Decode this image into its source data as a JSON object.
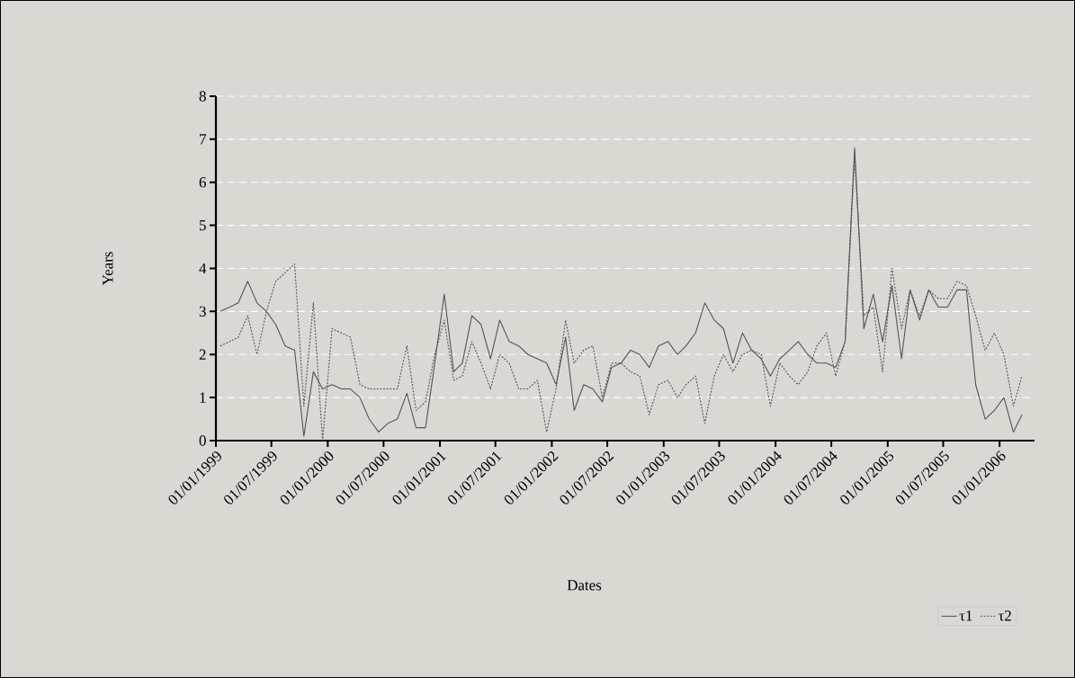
{
  "chart_data": {
    "type": "line",
    "xlabel": "Dates",
    "ylabel": "Years",
    "x": [
      "1999-01-15",
      "1999-02-15",
      "1999-03-15",
      "1999-04-15",
      "1999-05-15",
      "1999-06-15",
      "1999-07-15",
      "1999-08-15",
      "1999-09-15",
      "1999-10-15",
      "1999-11-15",
      "1999-12-15",
      "2000-01-15",
      "2000-02-15",
      "2000-03-15",
      "2000-04-15",
      "2000-05-15",
      "2000-06-15",
      "2000-07-15",
      "2000-08-15",
      "2000-09-15",
      "2000-10-15",
      "2000-11-15",
      "2000-12-15",
      "2001-01-15",
      "2001-02-15",
      "2001-03-15",
      "2001-04-15",
      "2001-05-15",
      "2001-06-15",
      "2001-07-15",
      "2001-08-15",
      "2001-09-15",
      "2001-10-15",
      "2001-11-15",
      "2001-12-15",
      "2002-01-15",
      "2002-02-15",
      "2002-03-15",
      "2002-04-15",
      "2002-05-15",
      "2002-06-15",
      "2002-07-15",
      "2002-08-15",
      "2002-09-15",
      "2002-10-15",
      "2002-11-15",
      "2002-12-15",
      "2003-01-15",
      "2003-02-15",
      "2003-03-15",
      "2003-04-15",
      "2003-05-15",
      "2003-06-15",
      "2003-07-15",
      "2003-08-15",
      "2003-09-15",
      "2003-10-15",
      "2003-11-15",
      "2003-12-15",
      "2004-01-15",
      "2004-02-15",
      "2004-03-15",
      "2004-04-15",
      "2004-05-15",
      "2004-06-15",
      "2004-07-15",
      "2004-08-15",
      "2004-09-15",
      "2004-10-15",
      "2004-11-15",
      "2004-12-15",
      "2005-01-15",
      "2005-02-15",
      "2005-03-15",
      "2005-04-15",
      "2005-05-15",
      "2005-06-15",
      "2005-07-15",
      "2005-08-15",
      "2005-09-15",
      "2005-10-15",
      "2005-11-15",
      "2005-12-15",
      "2006-01-15",
      "2006-02-15",
      "2006-03-15"
    ],
    "series": [
      {
        "name": "τ1",
        "color": "#555555",
        "line_style": "solid",
        "values": [
          3.0,
          3.1,
          3.2,
          3.7,
          3.2,
          3.0,
          2.7,
          2.2,
          2.1,
          0.1,
          1.6,
          1.2,
          1.3,
          1.2,
          1.2,
          1.0,
          0.5,
          0.2,
          0.4,
          0.5,
          1.1,
          0.3,
          0.3,
          1.8,
          3.4,
          1.6,
          1.8,
          2.9,
          2.7,
          1.9,
          2.8,
          2.3,
          2.2,
          2.0,
          1.9,
          1.8,
          1.3,
          2.4,
          0.7,
          1.3,
          1.2,
          0.9,
          1.7,
          1.8,
          2.1,
          2.0,
          1.7,
          2.2,
          2.3,
          2.0,
          2.2,
          2.5,
          3.2,
          2.8,
          2.6,
          1.8,
          2.5,
          2.1,
          1.9,
          1.5,
          1.9,
          2.1,
          2.3,
          2.0,
          1.8,
          1.8,
          1.7,
          2.3,
          6.8,
          2.6,
          3.4,
          2.3,
          3.6,
          1.9,
          3.5,
          2.8,
          3.5,
          3.1,
          3.1,
          3.5,
          3.5,
          1.3,
          0.5,
          0.7,
          1.0,
          0.2,
          0.6
        ]
      },
      {
        "name": "τ2",
        "color": "#555555",
        "line_style": "dotted",
        "values": [
          2.2,
          2.3,
          2.4,
          2.9,
          2.0,
          3.0,
          3.7,
          3.9,
          4.1,
          0.8,
          3.2,
          0.0,
          2.6,
          2.5,
          2.4,
          1.3,
          1.2,
          1.2,
          1.2,
          1.2,
          2.2,
          0.7,
          0.9,
          2.0,
          2.8,
          1.4,
          1.5,
          2.3,
          1.8,
          1.2,
          2.0,
          1.8,
          1.2,
          1.2,
          1.4,
          0.2,
          1.2,
          2.8,
          1.8,
          2.1,
          2.2,
          1.0,
          1.8,
          1.8,
          1.6,
          1.5,
          0.6,
          1.3,
          1.4,
          1.0,
          1.3,
          1.5,
          0.4,
          1.5,
          2.0,
          1.6,
          2.0,
          2.1,
          2.0,
          0.8,
          1.8,
          1.5,
          1.3,
          1.6,
          2.2,
          2.5,
          1.5,
          2.3,
          6.6,
          2.9,
          3.1,
          1.6,
          4.0,
          2.6,
          3.5,
          2.9,
          3.5,
          3.3,
          3.3,
          3.7,
          3.6,
          2.9,
          2.1,
          2.5,
          2.0,
          0.8,
          1.5
        ]
      }
    ],
    "xlim": [
      "1999-01-01",
      "2006-04-25"
    ],
    "xticks": [
      {
        "value": "1999-01-01",
        "label": "01/01/1999"
      },
      {
        "value": "1999-07-01",
        "label": "01/07/1999"
      },
      {
        "value": "2000-01-01",
        "label": "01/01/2000"
      },
      {
        "value": "2000-07-01",
        "label": "01/07/2000"
      },
      {
        "value": "2001-01-01",
        "label": "01/01/2001"
      },
      {
        "value": "2001-07-01",
        "label": "01/07/2001"
      },
      {
        "value": "2002-01-01",
        "label": "01/01/2002"
      },
      {
        "value": "2002-07-01",
        "label": "01/07/2002"
      },
      {
        "value": "2003-01-01",
        "label": "01/01/2003"
      },
      {
        "value": "2003-07-01",
        "label": "01/07/2003"
      },
      {
        "value": "2004-01-01",
        "label": "01/01/2004"
      },
      {
        "value": "2004-07-01",
        "label": "01/07/2004"
      },
      {
        "value": "2005-01-01",
        "label": "01/01/2005"
      },
      {
        "value": "2005-07-01",
        "label": "01/07/2005"
      },
      {
        "value": "2006-01-01",
        "label": "01/01/2006"
      }
    ],
    "ylim": [
      0,
      8
    ],
    "yticks": [
      0,
      1,
      2,
      3,
      4,
      5,
      6,
      7,
      8
    ],
    "grid": "y",
    "legend": "bottom right"
  }
}
